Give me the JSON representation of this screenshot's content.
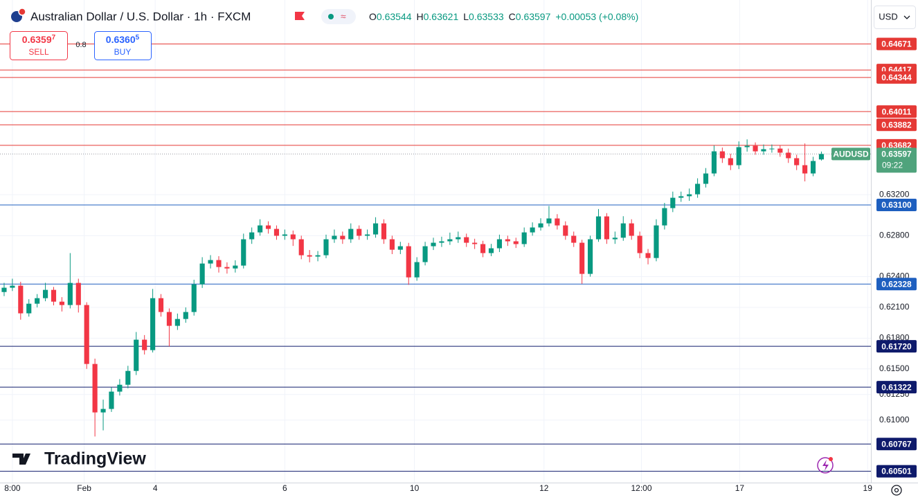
{
  "header": {
    "symbol": "Australian Dollar / U.S. Dollar · 1h · FXCM",
    "ohlc": [
      {
        "key": "O",
        "value": "0.63544"
      },
      {
        "key": "H",
        "value": "0.63621"
      },
      {
        "key": "L",
        "value": "0.63533"
      },
      {
        "key": "C",
        "value": "0.63597"
      }
    ],
    "change": "+0.00053 (+0.08%)",
    "sell": {
      "price": "0.6359",
      "pip": "7",
      "label": "SELL"
    },
    "spread": "0.8",
    "buy": {
      "price": "0.6360",
      "pip": "5",
      "label": "BUY"
    },
    "currency": "USD",
    "brand": "TradingView"
  },
  "chart_data": {
    "type": "candlestick",
    "up_color": "#089981",
    "down_color": "#f23645",
    "xlim": [
      -0.5,
      105
    ],
    "ylim": [
      0.6039,
      0.651
    ],
    "xticks": [
      {
        "value": 1,
        "label": "8:00"
      },
      {
        "value": 9.7,
        "label": "Feb"
      },
      {
        "value": 18.3,
        "label": "4"
      },
      {
        "value": 34,
        "label": "6"
      },
      {
        "value": 49.7,
        "label": "10"
      },
      {
        "value": 65.4,
        "label": "12"
      },
      {
        "value": 77.2,
        "label": "12:00"
      },
      {
        "value": 89.1,
        "label": "17"
      },
      {
        "value": 104.6,
        "label": "19"
      }
    ],
    "yticks": [
      {
        "value": 0.61,
        "label": "0.61000"
      },
      {
        "value": 0.6125,
        "label": "0.61250"
      },
      {
        "value": 0.615,
        "label": "0.61500"
      },
      {
        "value": 0.618,
        "label": "0.61800"
      },
      {
        "value": 0.621,
        "label": "0.62100"
      },
      {
        "value": 0.624,
        "label": "0.62400"
      },
      {
        "value": 0.628,
        "label": "0.62800"
      },
      {
        "value": 0.632,
        "label": "0.63200"
      }
    ],
    "grid": true,
    "levels": [
      {
        "value": 0.64671,
        "label": "0.64671",
        "color": "#e53935"
      },
      {
        "value": 0.64417,
        "label": "0.64417",
        "color": "#e53935"
      },
      {
        "value": 0.64344,
        "label": "0.64344",
        "color": "#e53935"
      },
      {
        "value": 0.64011,
        "label": "0.64011",
        "color": "#e53935"
      },
      {
        "value": 0.63882,
        "label": "0.63882",
        "color": "#e53935"
      },
      {
        "value": 0.63682,
        "label": "0.63682",
        "color": "#e53935"
      },
      {
        "value": 0.631,
        "label": "0.63100",
        "color": "#1e5fbf"
      },
      {
        "value": 0.62328,
        "label": "0.62328",
        "color": "#1e5fbf"
      },
      {
        "value": 0.6172,
        "label": "0.61720",
        "color": "#0e1a6b"
      },
      {
        "value": 0.61322,
        "label": "0.61322",
        "color": "#0e1a6b"
      },
      {
        "value": 0.60767,
        "label": "0.60767",
        "color": "#0e1a6b"
      },
      {
        "value": 0.60501,
        "label": "0.60501",
        "color": "#0e1a6b"
      }
    ],
    "last": {
      "symbol": "AUDUSD",
      "countdown": "09:22",
      "color": "#4fa37c"
    },
    "open": [
      0.6225,
      0.62292,
      0.62312,
      0.62042,
      0.62136,
      0.6219,
      0.62271,
      0.62156,
      0.62123,
      0.62339,
      0.62123,
      0.61548,
      0.61075,
      0.61109,
      0.61278,
      0.61345,
      0.6148,
      0.61785,
      0.61683,
      0.6219,
      0.62055,
      0.6192,
      0.61987,
      0.62055,
      0.62325,
      0.62528,
      0.62562,
      0.62494,
      0.6248,
      0.62508,
      0.62765,
      0.62832,
      0.629,
      0.62866,
      0.62799,
      0.62812,
      0.62765,
      0.62609,
      0.62596,
      0.62609,
      0.62765,
      0.62799,
      0.62765,
      0.62866,
      0.62799,
      0.62812,
      0.6292,
      0.62765,
      0.62663,
      0.62697,
      0.62393,
      0.62542,
      0.62697,
      0.62731,
      0.62745,
      0.62765,
      0.62785,
      0.62731,
      0.62718,
      0.6263,
      0.62677,
      0.62765,
      0.62745,
      0.62718,
      0.62832,
      0.6288,
      0.6292,
      0.62968,
      0.629,
      0.62799,
      0.62731,
      0.62427,
      0.62765,
      0.62988,
      0.62765,
      0.6278,
      0.6292,
      0.62799,
      0.6263,
      0.62582,
      0.629,
      0.63069,
      0.6317,
      0.63185,
      0.63204,
      0.63306,
      0.63407,
      0.63623,
      0.63556,
      0.63488,
      0.63664,
      0.63677,
      0.63623,
      0.63644,
      0.6365,
      0.6361,
      0.63556,
      0.63488,
      0.63407,
      0.63544
    ],
    "high": [
      0.6234,
      0.6238,
      0.6235,
      0.6218,
      0.6223,
      0.6234,
      0.623,
      0.622,
      0.6263,
      0.6238,
      0.6215,
      0.616,
      0.612,
      0.6132,
      0.614,
      0.6153,
      0.6186,
      0.6183,
      0.6228,
      0.6223,
      0.6209,
      0.6204,
      0.621,
      0.6237,
      0.6259,
      0.6261,
      0.626,
      0.6254,
      0.6256,
      0.6282,
      0.6288,
      0.6296,
      0.6294,
      0.629,
      0.6286,
      0.6285,
      0.628,
      0.6266,
      0.6265,
      0.6281,
      0.6286,
      0.6284,
      0.6292,
      0.629,
      0.6286,
      0.6298,
      0.6296,
      0.628,
      0.6274,
      0.6273,
      0.6259,
      0.6274,
      0.6278,
      0.6279,
      0.6283,
      0.6284,
      0.6282,
      0.6277,
      0.6275,
      0.6272,
      0.6281,
      0.628,
      0.6278,
      0.6288,
      0.6293,
      0.6297,
      0.6309,
      0.6301,
      0.6294,
      0.6284,
      0.6276,
      0.628,
      0.6306,
      0.6302,
      0.6284,
      0.6299,
      0.6296,
      0.6284,
      0.6267,
      0.6296,
      0.6312,
      0.6323,
      0.6323,
      0.6326,
      0.6336,
      0.6346,
      0.6368,
      0.6366,
      0.636,
      0.6372,
      0.6374,
      0.6371,
      0.6369,
      0.6369,
      0.6368,
      0.6365,
      0.6359,
      0.637,
      0.6357,
      0.63621
    ],
    "low": [
      0.6221,
      0.6226,
      0.6198,
      0.6201,
      0.621,
      0.6216,
      0.6212,
      0.6206,
      0.6209,
      0.6205,
      0.615,
      0.6084,
      0.609,
      0.6108,
      0.6124,
      0.6131,
      0.6144,
      0.6164,
      0.6166,
      0.6201,
      0.6172,
      0.6188,
      0.6195,
      0.6202,
      0.6229,
      0.6248,
      0.6244,
      0.6243,
      0.6244,
      0.6248,
      0.6272,
      0.628,
      0.6282,
      0.6276,
      0.6276,
      0.627,
      0.6257,
      0.6254,
      0.6255,
      0.6258,
      0.6273,
      0.6272,
      0.6273,
      0.6276,
      0.6276,
      0.6278,
      0.6272,
      0.6262,
      0.6262,
      0.6232,
      0.6236,
      0.6251,
      0.6266,
      0.6269,
      0.6271,
      0.6273,
      0.6269,
      0.6267,
      0.6259,
      0.626,
      0.6264,
      0.627,
      0.6268,
      0.6269,
      0.628,
      0.6285,
      0.6289,
      0.6286,
      0.6276,
      0.6269,
      0.6233,
      0.624,
      0.6274,
      0.6272,
      0.6272,
      0.6275,
      0.6276,
      0.6258,
      0.6252,
      0.6255,
      0.6286,
      0.6303,
      0.6313,
      0.6314,
      0.6317,
      0.6327,
      0.6338,
      0.6351,
      0.6344,
      0.6345,
      0.6362,
      0.6359,
      0.6359,
      0.6361,
      0.6357,
      0.6351,
      0.6344,
      0.6333,
      0.6338,
      0.63533
    ],
    "close": [
      0.62292,
      0.62312,
      0.62042,
      0.62136,
      0.6219,
      0.62271,
      0.62156,
      0.62123,
      0.62339,
      0.62123,
      0.61548,
      0.61075,
      0.61109,
      0.61278,
      0.61345,
      0.6148,
      0.61785,
      0.61683,
      0.6219,
      0.62055,
      0.6192,
      0.61987,
      0.62055,
      0.62325,
      0.62528,
      0.62562,
      0.62494,
      0.6248,
      0.62508,
      0.62765,
      0.62832,
      0.629,
      0.62866,
      0.62799,
      0.62812,
      0.62765,
      0.62609,
      0.62596,
      0.62609,
      0.62765,
      0.62799,
      0.62765,
      0.62866,
      0.62799,
      0.62812,
      0.6292,
      0.62765,
      0.62663,
      0.62697,
      0.62393,
      0.62542,
      0.62697,
      0.62731,
      0.62745,
      0.62765,
      0.62785,
      0.62731,
      0.62718,
      0.6263,
      0.62677,
      0.62765,
      0.62745,
      0.62718,
      0.62832,
      0.6288,
      0.6292,
      0.62968,
      0.629,
      0.62799,
      0.62731,
      0.62427,
      0.62765,
      0.62988,
      0.62765,
      0.6278,
      0.6292,
      0.62799,
      0.6263,
      0.62582,
      0.629,
      0.63069,
      0.6317,
      0.63185,
      0.63204,
      0.63306,
      0.63407,
      0.63623,
      0.63556,
      0.63488,
      0.63664,
      0.63677,
      0.63623,
      0.63644,
      0.6365,
      0.6361,
      0.63556,
      0.63488,
      0.63407,
      0.63529,
      0.63597
    ]
  }
}
